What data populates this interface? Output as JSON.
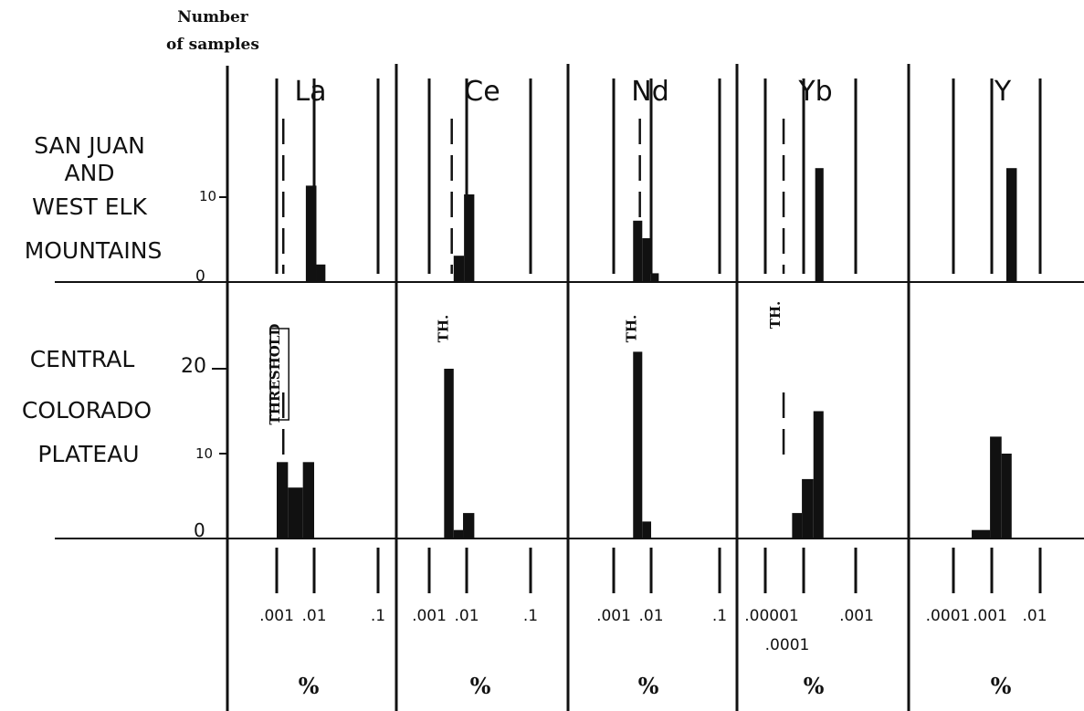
{
  "y_axis_title": [
    "Number",
    "of samples"
  ],
  "regions": [
    {
      "id": "top",
      "label_lines": [
        "SAN JUAN",
        "AND",
        "WEST ELK",
        "MOUNTAINS"
      ],
      "y_ticks": [
        "10",
        "0"
      ]
    },
    {
      "id": "bottom",
      "label_lines": [
        "CENTRAL",
        "COLORADO",
        "PLATEAU"
      ],
      "y_ticks": [
        "20",
        "10",
        "0"
      ]
    }
  ],
  "threshold_labels": {
    "full": "THRESHOLD",
    "short": "TH."
  },
  "chart_data": [
    {
      "type": "bar",
      "title": "La",
      "xlabel": "%",
      "x_scale": "log",
      "x_ticks": [
        ".001",
        ".01",
        ".1"
      ],
      "threshold": 0.0015,
      "series": [
        {
          "name": "SAN JUAN AND WEST ELK MOUNTAINS",
          "bins": [
            [
              0.006,
              0.0115,
              11
            ],
            [
              0.0115,
              0.02,
              2
            ]
          ]
        },
        {
          "name": "CENTRAL COLORADO PLATEAU",
          "bins": [
            [
              0.001,
              0.002,
              9
            ],
            [
              0.002,
              0.005,
              6
            ],
            [
              0.005,
              0.01,
              9
            ]
          ]
        }
      ]
    },
    {
      "type": "bar",
      "title": "Ce",
      "xlabel": "%",
      "x_scale": "log",
      "x_ticks": [
        ".001",
        ".01",
        ".1"
      ],
      "threshold": 0.004,
      "series": [
        {
          "name": "SAN JUAN AND WEST ELK MOUNTAINS",
          "bins": [
            [
              0.0045,
              0.0085,
              3
            ],
            [
              0.0085,
              0.016,
              10
            ]
          ]
        },
        {
          "name": "CENTRAL COLORADO PLATEAU",
          "bins": [
            [
              0.0025,
              0.0045,
              20
            ],
            [
              0.0045,
              0.008,
              1
            ],
            [
              0.008,
              0.016,
              3
            ]
          ]
        }
      ]
    },
    {
      "type": "bar",
      "title": "Nd",
      "xlabel": "%",
      "x_scale": "log",
      "x_ticks": [
        ".001",
        ".01",
        ".1"
      ],
      "threshold": 0.005,
      "series": [
        {
          "name": "SAN JUAN AND WEST ELK MOUNTAINS",
          "bins": [
            [
              0.0033,
              0.0058,
              7
            ],
            [
              0.0058,
              0.0098,
              5
            ],
            [
              0.0098,
              0.016,
              1
            ]
          ]
        },
        {
          "name": "CENTRAL COLORADO PLATEAU",
          "bins": [
            [
              0.0033,
              0.0058,
              22
            ],
            [
              0.0058,
              0.01,
              2
            ]
          ]
        }
      ]
    },
    {
      "type": "bar",
      "title": "Yb",
      "xlabel": "%",
      "x_scale": "log",
      "x_ticks": [
        ".00001",
        ".0001",
        ".001"
      ],
      "threshold": 3e-05,
      "series": [
        {
          "name": "SAN JUAN AND WEST ELK MOUNTAINS",
          "bins": [
            [
              0.0002,
              0.00033,
              13
            ]
          ]
        },
        {
          "name": "CENTRAL COLORADO PLATEAU",
          "bins": [
            [
              5e-05,
              9e-05,
              3
            ],
            [
              9e-05,
              0.00018,
              7
            ],
            [
              0.00018,
              0.00033,
              15
            ]
          ]
        }
      ]
    },
    {
      "type": "bar",
      "title": "Y",
      "xlabel": "%",
      "x_scale": "log",
      "x_ticks": [
        ".0001",
        ".001",
        ".01"
      ],
      "series": [
        {
          "name": "SAN JUAN AND WEST ELK MOUNTAINS",
          "bins": [
            [
              0.0024,
              0.0045,
              13
            ]
          ]
        },
        {
          "name": "CENTRAL COLORADO PLATEAU",
          "bins": [
            [
              0.0003,
              0.0009,
              1
            ],
            [
              0.0009,
              0.0018,
              12
            ],
            [
              0.0018,
              0.0033,
              10
            ]
          ]
        }
      ]
    }
  ]
}
